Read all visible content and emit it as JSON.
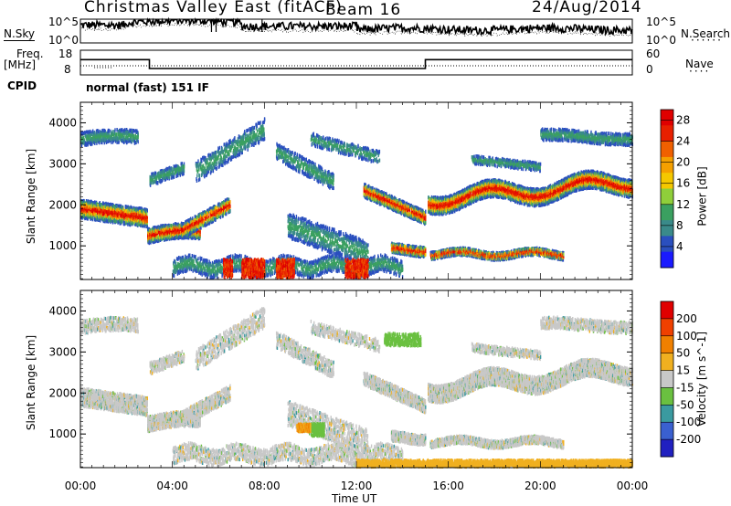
{
  "header": {
    "station": "Christmas Valley East (fitACF)",
    "beam": "Beam 16",
    "date": "24/Aug/2014"
  },
  "left_labels": {
    "nsky": "N.Sky",
    "freq": "Freq.",
    "freq_unit": "[MHz]",
    "cpid": "CPID"
  },
  "right_labels": {
    "nsearch": "N.Search",
    "nave": "Nave"
  },
  "cpid_text": "normal (fast) 151 IF",
  "noise_axis_ticks": [
    "10^5",
    "10^0"
  ],
  "freq_axis_ticks": [
    "18",
    "8"
  ],
  "nave_axis_ticks": [
    "60",
    "0"
  ],
  "chart_data": [
    {
      "type": "line",
      "name": "noise-panel",
      "x": [
        "00:00",
        "04:00",
        "08:00",
        "12:00",
        "16:00",
        "20:00",
        "00:00"
      ],
      "series": [
        {
          "name": "N.Sky",
          "values": [
            0.75,
            0.85,
            0.95,
            0.6,
            0.55,
            0.55,
            0.65
          ]
        }
      ]
    },
    {
      "type": "line",
      "name": "freq-panel",
      "series": [
        {
          "name": "Freq",
          "x_hours": [
            0,
            3,
            3,
            15,
            15,
            24
          ],
          "values": [
            14.2,
            14.2,
            10.6,
            10.6,
            14.2,
            14.2
          ]
        },
        {
          "name": "Nave",
          "x_hours": [
            0,
            24
          ],
          "values": [
            8,
            8
          ]
        }
      ]
    },
    {
      "type": "heatmap",
      "name": "power-panel",
      "ylabel": "Slant Range [km]",
      "yticks": [
        1000,
        2000,
        3000,
        4000
      ],
      "ylim": [
        180,
        4500
      ],
      "xlim_hours": [
        0,
        24
      ],
      "colorbar": {
        "label": "Power [dB]",
        "ticks": [
          4,
          8,
          12,
          16,
          20,
          24,
          28
        ],
        "range": [
          0,
          30
        ],
        "colors": [
          "#1a1aff",
          "#2a4fbf",
          "#3a8a8a",
          "#3aa060",
          "#8fcf3a",
          "#f5c800",
          "#f5a000",
          "#f06000",
          "#e82000",
          "#e00000"
        ]
      }
    },
    {
      "type": "heatmap",
      "name": "velocity-panel",
      "ylabel": "Slant Range [km]",
      "xlabel": "Time UT",
      "yticks": [
        1000,
        2000,
        3000,
        4000
      ],
      "ylim": [
        180,
        4500
      ],
      "xlim_hours": [
        0,
        24
      ],
      "xticks": [
        "00:00",
        "04:00",
        "08:00",
        "12:00",
        "16:00",
        "20:00",
        "00:00"
      ],
      "colorbar": {
        "label": "Velocity [m s^-1]",
        "ticks": [
          200,
          100,
          50,
          15,
          -15,
          -50,
          -100,
          -200
        ],
        "colors": [
          "#2020c0",
          "#3a60d0",
          "#3a9aa0",
          "#6ac040",
          "#c8c8c8",
          "#f0b020",
          "#f08000",
          "#f04000",
          "#e00000"
        ]
      }
    }
  ]
}
